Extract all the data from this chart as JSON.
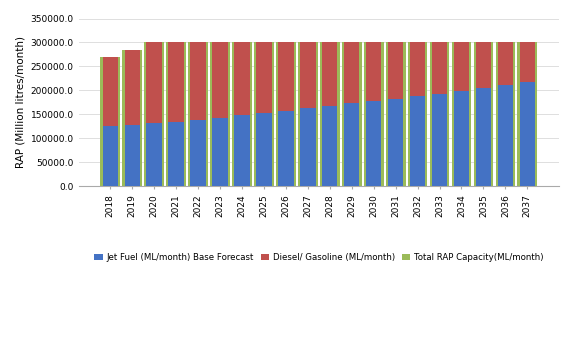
{
  "years": [
    2018,
    2019,
    2020,
    2021,
    2022,
    2023,
    2024,
    2025,
    2026,
    2027,
    2028,
    2029,
    2030,
    2031,
    2032,
    2033,
    2034,
    2035,
    2036,
    2037
  ],
  "jet_fuel": [
    125000,
    128000,
    132000,
    135000,
    139000,
    143000,
    148000,
    153000,
    158000,
    163000,
    168000,
    173000,
    178000,
    183000,
    188000,
    193000,
    199000,
    205000,
    211000,
    218000
  ],
  "total_rap": [
    270000,
    285000,
    300000,
    300000,
    300000,
    300000,
    300000,
    300000,
    300000,
    300000,
    300000,
    300000,
    300000,
    300000,
    300000,
    300000,
    300000,
    300000,
    300000,
    300000
  ],
  "jet_fuel_color": "#4472C4",
  "diesel_color": "#C0504D",
  "rap_color": "#9BBB59",
  "ylabel": "RAP (Million litres/month)",
  "ylim": [
    0,
    350000
  ],
  "yticks": [
    0,
    50000,
    100000,
    150000,
    200000,
    250000,
    300000,
    350000
  ],
  "legend_jet": "Jet Fuel (ML/month) Base Forecast",
  "legend_diesel": "Diesel/ Gasoline (ML/month)",
  "legend_rap": "Total RAP Capacity(ML/month)",
  "rap_bar_width": 0.9,
  "inner_bar_width": 0.7,
  "background_color": "#FFFFFF",
  "grid_color": "#D9D9D9"
}
